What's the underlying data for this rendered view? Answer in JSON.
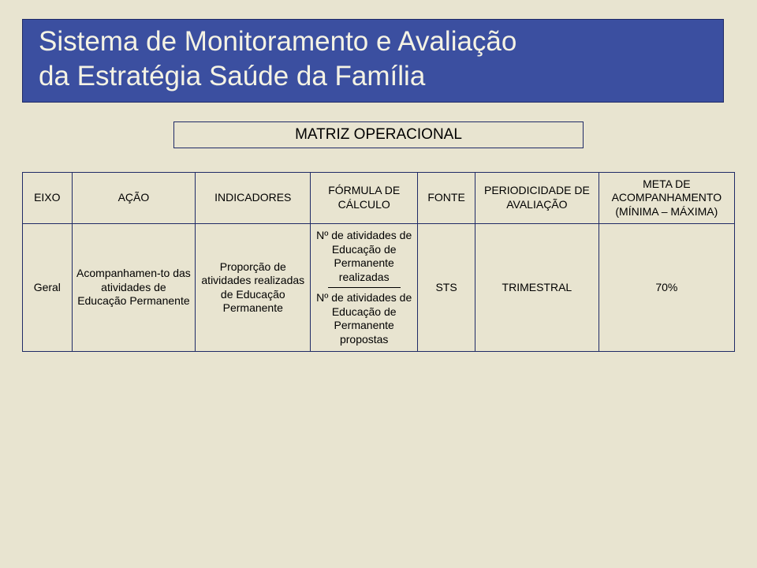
{
  "colors": {
    "slide_bg": "#e8e4d0",
    "title_bg": "#3b4fa0",
    "title_border": "#1f2a66",
    "title_text": "#f5f3e4",
    "subtitle_bg": "#e8e4d0",
    "subtitle_border": "#1f2a66",
    "subtitle_text": "#000000",
    "table_border": "#1f2a66",
    "table_header_bg": "#e8e4d0",
    "table_cell_bg": "#e8e4d0"
  },
  "title": {
    "line1": "Sistema de Monitoramento e Avaliação",
    "line2": "da Estratégia Saúde da Família"
  },
  "subtitle": "MATRIZ OPERACIONAL",
  "table": {
    "headers": {
      "eixo": "EIXO",
      "acao": "AÇÃO",
      "indicadores": "INDICADORES",
      "formula": "FÓRMULA DE CÁLCULO",
      "fonte": "FONTE",
      "periodicidade": "PERIODICIDADE DE AVALIAÇÃO",
      "meta_line1": "META DE ACOMPANHAMENTO",
      "meta_line2": "(MÍNIMA – MÁXIMA)"
    },
    "row": {
      "eixo": "Geral",
      "acao": "Acompanhamen-to das atividades de Educação Permanente",
      "indicadores": "Proporção de atividades realizadas de Educação Permanente",
      "formula_num": "Nº de atividades de Educação de Permanente realizadas",
      "formula_den": "Nº de atividades de Educação de Permanente propostas",
      "fonte": "STS",
      "periodicidade": "TRIMESTRAL",
      "meta": "70%"
    }
  }
}
